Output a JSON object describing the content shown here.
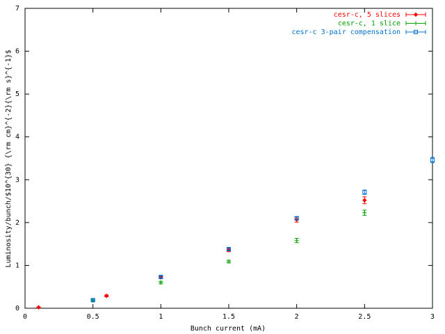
{
  "chart_data": {
    "type": "errorbar",
    "xlabel": "Bunch current (mA)",
    "ylabel": "Luminosity/bunch/$10^{30} {\\rm cm}^{-2}{\\rm s}^{-1}$",
    "xlim": [
      0,
      3
    ],
    "ylim": [
      0,
      7
    ],
    "xticks": [
      0,
      0.5,
      1,
      1.5,
      2,
      2.5,
      3
    ],
    "yticks": [
      0,
      1,
      2,
      3,
      4,
      5,
      6,
      7
    ],
    "legend": "upper right",
    "series": [
      {
        "name": "cesr-c, 5 slices",
        "color": "#ff0000",
        "marker": "diamond",
        "x": [
          0.1,
          0.6,
          1.0,
          1.5,
          2.0,
          2.5
        ],
        "values": [
          0.02,
          0.29,
          0.72,
          1.36,
          2.07,
          2.52
        ],
        "errors": [
          0.01,
          0.02,
          0.03,
          0.04,
          0.06,
          0.08
        ]
      },
      {
        "name": "cesr-c, 1 slice",
        "color": "#00a000",
        "marker": "plus",
        "x": [
          0.5,
          1.0,
          1.5,
          2.0,
          2.5
        ],
        "values": [
          0.18,
          0.6,
          1.09,
          1.58,
          2.23
        ],
        "errors": [
          0.02,
          0.03,
          0.03,
          0.05,
          0.06
        ]
      },
      {
        "name": "cesr-c 3-pair compensation",
        "color": "#0070d0",
        "marker": "square",
        "x": [
          0.5,
          1.0,
          1.5,
          2.0,
          2.5,
          3.0
        ],
        "values": [
          0.19,
          0.73,
          1.38,
          2.1,
          2.71,
          3.46
        ],
        "errors": [
          0.02,
          0.03,
          0.03,
          0.04,
          0.05,
          0.06
        ]
      }
    ]
  }
}
